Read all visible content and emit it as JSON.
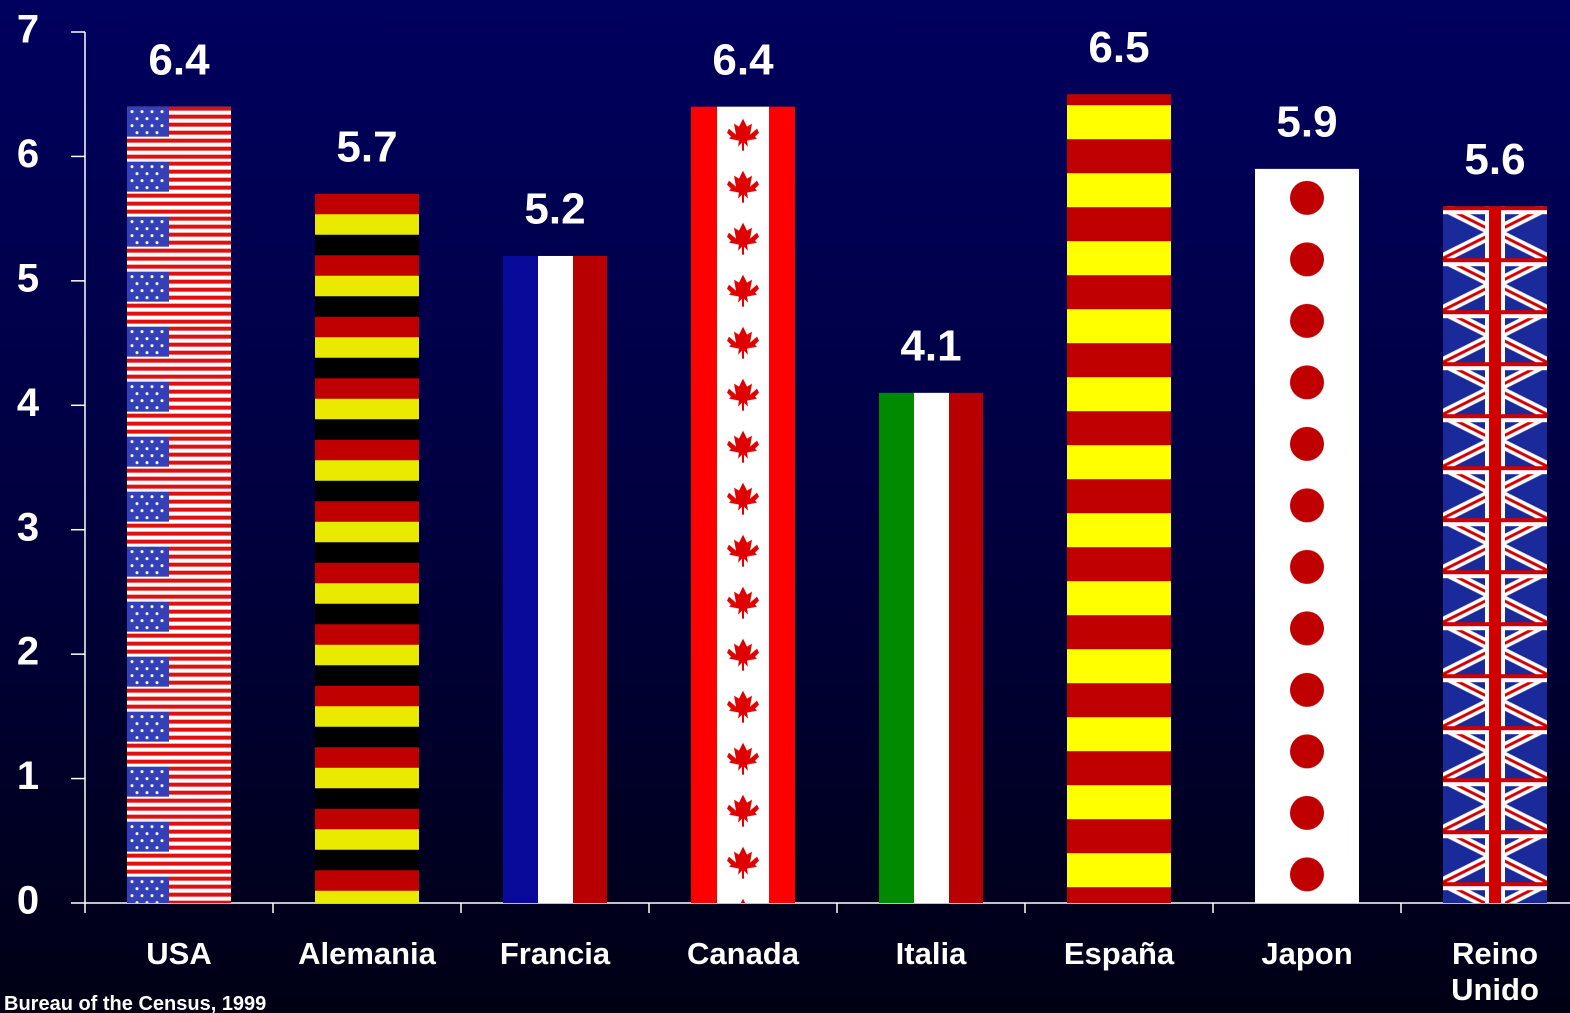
{
  "chart_data": {
    "type": "bar",
    "categories": [
      "USA",
      "Alemania",
      "Francia",
      "Canada",
      "Italia",
      "España",
      "Japon",
      "Reino Unido"
    ],
    "values": [
      6.4,
      5.7,
      5.2,
      6.4,
      4.1,
      6.5,
      5.9,
      5.6
    ],
    "ylim": [
      0,
      7
    ],
    "yticks": [
      0,
      1,
      2,
      3,
      4,
      5,
      6,
      7
    ],
    "source": "Bureau of the Census, 1999"
  }
}
